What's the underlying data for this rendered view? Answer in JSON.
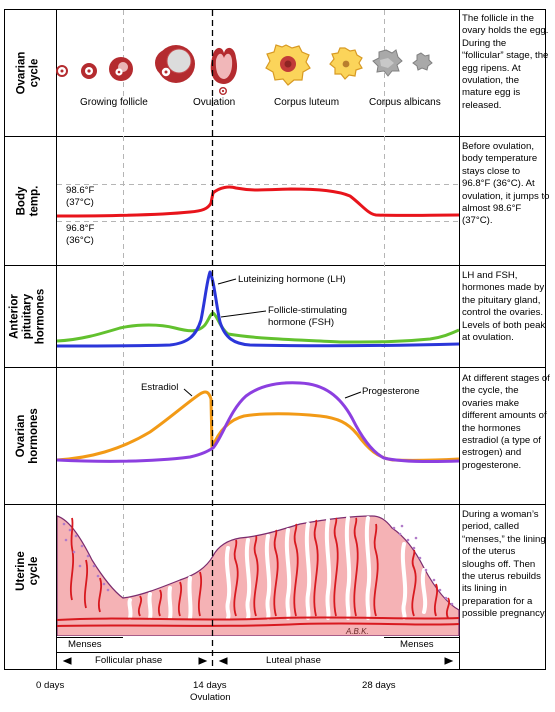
{
  "rows": [
    {
      "label": "Ovarian\ncycle",
      "description": "The follicle in the ovary holds the egg. During the “follicular” stage, the egg ripens. At ovulation, the mature egg is released."
    },
    {
      "label": "Body\ntemp.",
      "description": "Before ovulation, body temperature stays close to 96.8°F (36°C). At ovulation, it jumps to almost 98.6°F (37°C)."
    },
    {
      "label": "Anterior\npituitary\nhormones",
      "description": "LH and FSH, hormones made by the pituitary gland, control the ovaries. Levels of both peak at ovulation."
    },
    {
      "label": "Ovarian\nhormones",
      "description": "At different stages of the cycle, the ovaries make different amounts of the hormones estradiol (a type of estrogen) and progesterone."
    },
    {
      "label": "Uterine\ncycle",
      "description": "During a woman’s period, called “menses,” the lining of the uterus sloughs off. Then the uterus rebuilds its lining in preparation for a possible pregnancy."
    }
  ],
  "ovary_labels": {
    "growing_follicle": "Growing follicle",
    "ovulation": "Ovulation",
    "corpus_luteum": "Corpus luteum",
    "corpus_albicans": "Corpus albicans"
  },
  "temperature": {
    "high_label": "98.6°F\n(37°C)",
    "low_label": "96.8°F\n(36°C)"
  },
  "pituitary": {
    "lh_label": "Luteinizing hormone (LH)",
    "fsh_label": "Follicle-stimulating\nhormone (FSH)"
  },
  "ovarian_hormones": {
    "estradiol_label": "Estradiol",
    "progesterone_label": "Progesterone"
  },
  "uterine": {
    "menses_left": "Menses",
    "menses_right": "Menses",
    "follicular_phase": "Follicular phase",
    "luteal_phase": "Luteal phase",
    "signature": "A.B.K."
  },
  "timeline": {
    "day0": "0 days",
    "day14": "14 days",
    "ovulation": "Ovulation",
    "day28": "28 days"
  },
  "colors": {
    "temperature": "#e8141b",
    "lh": "#2b36d9",
    "fsh": "#62c12e",
    "estradiol": "#f29a16",
    "progesterone": "#8c3fe0",
    "uterine_tissue": "#f5b2b5",
    "vessel": "#d8191f",
    "corpus_luteum": "#fbd45a"
  }
}
